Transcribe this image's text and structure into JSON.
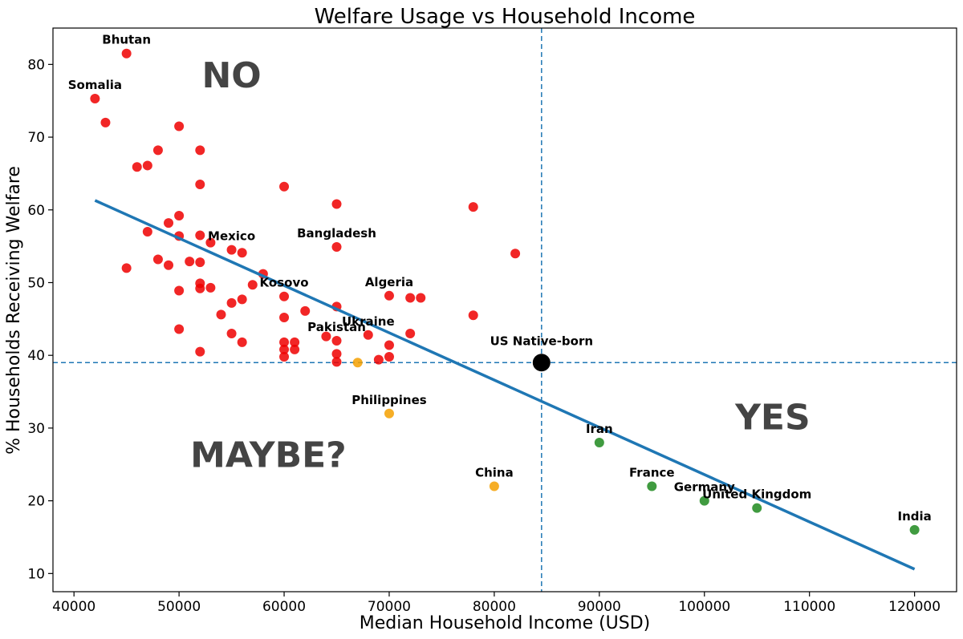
{
  "chart_data": {
    "type": "scatter",
    "title": "Welfare Usage vs Household Income",
    "xlabel": "Median Household Income (USD)",
    "ylabel": "% Households Receiving Welfare",
    "xlim": [
      38000,
      124000
    ],
    "ylim": [
      7.5,
      85
    ],
    "xticks": [
      40000,
      50000,
      60000,
      70000,
      80000,
      90000,
      100000,
      110000,
      120000
    ],
    "xtick_labels": [
      "40000",
      "50000",
      "60000",
      "70000",
      "80000",
      "90000",
      "100000",
      "110000",
      "120000"
    ],
    "yticks": [
      10,
      20,
      30,
      40,
      50,
      60,
      70,
      80
    ],
    "ytick_labels": [
      "10",
      "20",
      "30",
      "40",
      "50",
      "60",
      "70",
      "80"
    ],
    "colors": {
      "red": "#ee0000",
      "orange": "#f5a000",
      "green": "#1e8a1e",
      "black": "#000000",
      "trend": "#1f77b4",
      "refline": "#1f77b4"
    },
    "reference_lines": {
      "x": 84500,
      "y": 39
    },
    "trend_line": {
      "x": [
        42000,
        120000
      ],
      "y": [
        61.3,
        10.6
      ]
    },
    "quadrant_labels": [
      {
        "text": "NO",
        "x": 55000,
        "y": 78.5
      },
      {
        "text": "MAYBE?",
        "x": 58500,
        "y": 26.3
      },
      {
        "text": "YES",
        "x": 106500,
        "y": 31.5
      }
    ],
    "series": [
      {
        "name": "red",
        "color": "red",
        "points": [
          {
            "x": 45000,
            "y": 81.5,
            "label": "Bhutan"
          },
          {
            "x": 42000,
            "y": 75.3,
            "label": "Somalia"
          },
          {
            "x": 43000,
            "y": 72
          },
          {
            "x": 50000,
            "y": 71.5
          },
          {
            "x": 48000,
            "y": 68.2
          },
          {
            "x": 52000,
            "y": 68.2
          },
          {
            "x": 46000,
            "y": 65.9
          },
          {
            "x": 47000,
            "y": 66.1
          },
          {
            "x": 52000,
            "y": 63.5
          },
          {
            "x": 60000,
            "y": 63.2
          },
          {
            "x": 65000,
            "y": 60.8
          },
          {
            "x": 78000,
            "y": 60.4
          },
          {
            "x": 50000,
            "y": 59.2
          },
          {
            "x": 49000,
            "y": 58.2
          },
          {
            "x": 47000,
            "y": 57
          },
          {
            "x": 50000,
            "y": 56.4
          },
          {
            "x": 52000,
            "y": 56.5
          },
          {
            "x": 53000,
            "y": 55.5
          },
          {
            "x": 55000,
            "y": 54.5,
            "label": "Mexico"
          },
          {
            "x": 56000,
            "y": 54.1
          },
          {
            "x": 65000,
            "y": 54.9,
            "label": "Bangladesh"
          },
          {
            "x": 82000,
            "y": 54
          },
          {
            "x": 48000,
            "y": 53.2
          },
          {
            "x": 51000,
            "y": 52.9
          },
          {
            "x": 52000,
            "y": 52.8
          },
          {
            "x": 49000,
            "y": 52.4
          },
          {
            "x": 45000,
            "y": 52
          },
          {
            "x": 58000,
            "y": 51.2
          },
          {
            "x": 52000,
            "y": 49.9
          },
          {
            "x": 57000,
            "y": 49.7
          },
          {
            "x": 53000,
            "y": 49.3
          },
          {
            "x": 52000,
            "y": 49.2
          },
          {
            "x": 50000,
            "y": 48.9
          },
          {
            "x": 70000,
            "y": 48.2,
            "label": "Algeria"
          },
          {
            "x": 72000,
            "y": 47.9
          },
          {
            "x": 73000,
            "y": 47.9
          },
          {
            "x": 60000,
            "y": 48.1,
            "label": "Kosovo"
          },
          {
            "x": 56000,
            "y": 47.7
          },
          {
            "x": 55000,
            "y": 47.2
          },
          {
            "x": 65000,
            "y": 46.7
          },
          {
            "x": 62000,
            "y": 46.1
          },
          {
            "x": 54000,
            "y": 45.6
          },
          {
            "x": 60000,
            "y": 45.2
          },
          {
            "x": 78000,
            "y": 45.5
          },
          {
            "x": 50000,
            "y": 43.6
          },
          {
            "x": 55000,
            "y": 43
          },
          {
            "x": 68000,
            "y": 42.8,
            "label": "Ukraine"
          },
          {
            "x": 72000,
            "y": 43
          },
          {
            "x": 64000,
            "y": 42.6
          },
          {
            "x": 56000,
            "y": 41.8
          },
          {
            "x": 60000,
            "y": 41.8
          },
          {
            "x": 61000,
            "y": 41.8
          },
          {
            "x": 65000,
            "y": 42,
            "label": "Pakistan"
          },
          {
            "x": 70000,
            "y": 41.4
          },
          {
            "x": 60000,
            "y": 40.8
          },
          {
            "x": 61000,
            "y": 40.8
          },
          {
            "x": 52000,
            "y": 40.5
          },
          {
            "x": 65000,
            "y": 40.2
          },
          {
            "x": 60000,
            "y": 39.8
          },
          {
            "x": 70000,
            "y": 39.8
          },
          {
            "x": 69000,
            "y": 39.4
          },
          {
            "x": 65000,
            "y": 39.1
          }
        ]
      },
      {
        "name": "orange",
        "color": "orange",
        "points": [
          {
            "x": 67000,
            "y": 39
          },
          {
            "x": 70000,
            "y": 32,
            "label": "Philippines"
          },
          {
            "x": 80000,
            "y": 22,
            "label": "China"
          }
        ]
      },
      {
        "name": "green",
        "color": "green",
        "points": [
          {
            "x": 90000,
            "y": 28,
            "label": "Iran"
          },
          {
            "x": 95000,
            "y": 22,
            "label": "France"
          },
          {
            "x": 100000,
            "y": 20,
            "label": "Germany"
          },
          {
            "x": 105000,
            "y": 19,
            "label": "United Kingdom"
          },
          {
            "x": 120000,
            "y": 16,
            "label": "India"
          }
        ]
      },
      {
        "name": "black",
        "color": "black",
        "large": true,
        "points": [
          {
            "x": 84500,
            "y": 39,
            "label": "US Native-born"
          }
        ]
      }
    ]
  }
}
